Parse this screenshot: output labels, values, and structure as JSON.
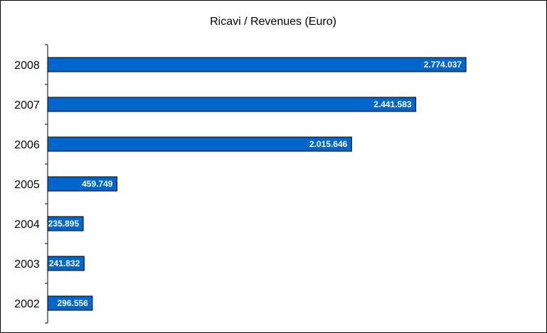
{
  "chart_data": {
    "type": "bar",
    "orientation": "horizontal",
    "title": "Ricavi / Revenues (Euro)",
    "xlabel": "",
    "ylabel": "",
    "categories": [
      "2008",
      "2007",
      "2006",
      "2005",
      "2004",
      "2003",
      "2002"
    ],
    "values": [
      2774037,
      2441583,
      2015646,
      459749,
      235895,
      241832,
      296556
    ],
    "data_labels": [
      "2.774.037",
      "2.441.583",
      "2.015.646",
      "459.749",
      "235.895",
      "241.832",
      "296.556"
    ],
    "xlim": [
      0,
      3000000
    ],
    "grid": false,
    "legend": "none",
    "bar_color": "#0066CC",
    "bar_border_color": "#000000"
  }
}
